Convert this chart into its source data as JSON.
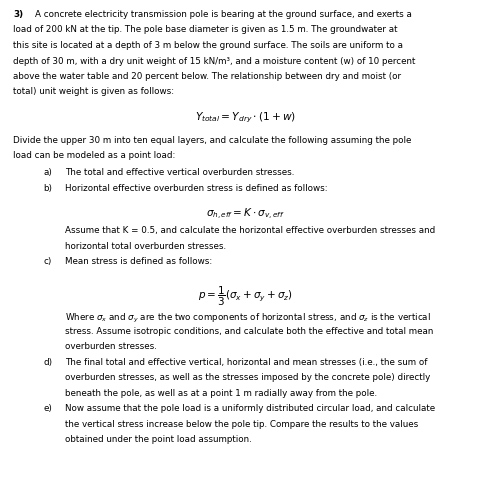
{
  "background_color": "#ffffff",
  "fig_width": 4.91,
  "fig_height": 4.78,
  "dpi": 100,
  "text_color": "#000000",
  "font_size": 6.3,
  "math_font_size": 7.2,
  "lh": 0.155,
  "indent_a": 0.085,
  "indent_b": 0.118
}
